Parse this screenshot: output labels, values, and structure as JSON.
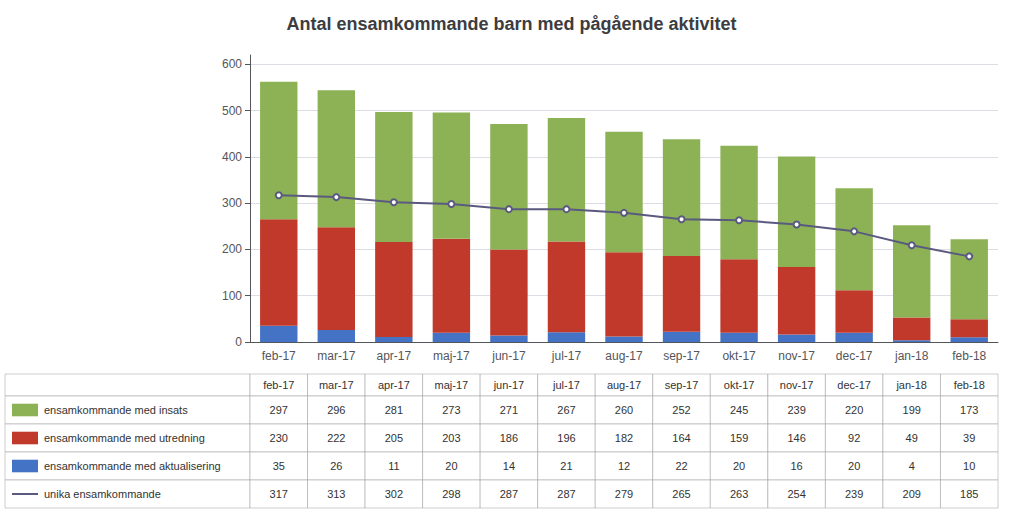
{
  "chart_data": {
    "type": "bar",
    "title": "Antal ensamkommande barn med pågående aktivitet",
    "categories": [
      "feb-17",
      "mar-17",
      "apr-17",
      "maj-17",
      "jun-17",
      "jul-17",
      "aug-17",
      "sep-17",
      "okt-17",
      "nov-17",
      "dec-17",
      "jan-18",
      "feb-18"
    ],
    "stacked": true,
    "grid": true,
    "ylim": [
      0,
      620
    ],
    "yticks": [
      0,
      100,
      200,
      300,
      400,
      500,
      600
    ],
    "series": [
      {
        "name": "ensamkommande med aktualisering",
        "type": "bar",
        "color": "#4472c4",
        "values": [
          35,
          26,
          11,
          20,
          14,
          21,
          12,
          22,
          20,
          16,
          20,
          4,
          10
        ]
      },
      {
        "name": "ensamkommande med utredning",
        "type": "bar",
        "color": "#c0392b",
        "values": [
          230,
          222,
          205,
          203,
          186,
          196,
          182,
          164,
          159,
          146,
          92,
          49,
          39
        ]
      },
      {
        "name": "ensamkommande med insats",
        "type": "bar",
        "color": "#8db255",
        "values": [
          297,
          296,
          281,
          273,
          271,
          267,
          260,
          252,
          245,
          239,
          220,
          199,
          173
        ]
      },
      {
        "name": "unika ensamkommande",
        "type": "line",
        "color": "#5a5a80",
        "values": [
          317,
          313,
          302,
          298,
          287,
          287,
          279,
          265,
          263,
          254,
          239,
          209,
          185
        ]
      }
    ]
  }
}
